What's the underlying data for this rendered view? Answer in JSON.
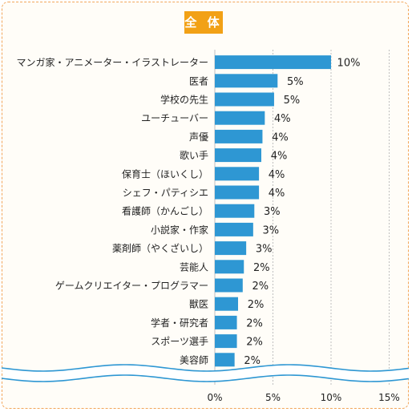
{
  "header": {
    "label": "全 体"
  },
  "colors": {
    "bar": "#2e97d3",
    "grid": "#bfbfbf",
    "badge": "#f2a116",
    "frame": "#f2a65a"
  },
  "chart_data": {
    "type": "bar",
    "orientation": "horizontal",
    "categories": [
      "マンガ家・アニメーター・イラストレーター",
      "医者",
      "学校の先生",
      "ユーチューバー",
      "声優",
      "歌い手",
      "保育士（ほいくし）",
      "シェフ・パティシエ",
      "看護師（かんごし）",
      "小説家・作家",
      "薬剤師（やくざいし）",
      "芸能人",
      "ゲームクリエイター・プログラマー",
      "獣医",
      "学者・研究者",
      "スポーツ選手",
      "美容師"
    ],
    "values": [
      10,
      5,
      5,
      4,
      4,
      4,
      4,
      4,
      3,
      3,
      3,
      2,
      2,
      2,
      2,
      2,
      2
    ],
    "value_labels": [
      "10%",
      "5%",
      "5%",
      "4%",
      "4%",
      "4%",
      "4%",
      "4%",
      "3%",
      "3%",
      "3%",
      "2%",
      "2%",
      "2%",
      "2%",
      "2%",
      "2%"
    ],
    "plotted_lengths": [
      10.0,
      5.4,
      5.1,
      4.3,
      4.1,
      4.0,
      3.8,
      3.8,
      3.4,
      3.3,
      2.7,
      2.5,
      2.4,
      2.0,
      1.9,
      1.9,
      1.7
    ],
    "x_ticks": [
      "0%",
      "5%",
      "10%",
      "15%"
    ],
    "x_tick_values": [
      0,
      5,
      10,
      15
    ],
    "xlim": [
      0,
      15
    ],
    "grid": true,
    "axis_break": true
  }
}
